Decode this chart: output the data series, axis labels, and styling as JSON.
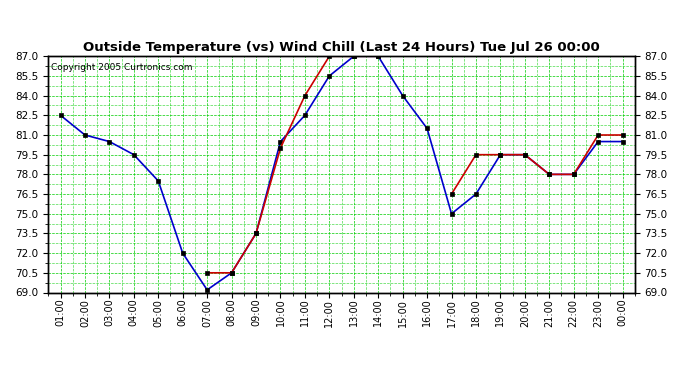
{
  "title": "Outside Temperature (vs) Wind Chill (Last 24 Hours) Tue Jul 26 00:00",
  "copyright": "Copyright 2005 Curtronics.com",
  "hours": [
    "01:00",
    "02:00",
    "03:00",
    "04:00",
    "05:00",
    "06:00",
    "07:00",
    "08:00",
    "09:00",
    "10:00",
    "11:00",
    "12:00",
    "13:00",
    "14:00",
    "15:00",
    "16:00",
    "17:00",
    "18:00",
    "19:00",
    "20:00",
    "21:00",
    "22:00",
    "23:00",
    "00:00"
  ],
  "outside_temp": [
    82.5,
    81.0,
    80.5,
    79.5,
    77.5,
    72.0,
    69.2,
    70.5,
    73.5,
    80.5,
    82.5,
    85.5,
    87.0,
    87.0,
    84.0,
    81.5,
    75.0,
    76.5,
    79.5,
    79.5,
    78.0,
    78.0,
    80.5,
    80.5
  ],
  "wind_chill": [
    null,
    null,
    null,
    null,
    null,
    null,
    70.5,
    70.5,
    73.5,
    80.0,
    84.0,
    87.0,
    87.0,
    87.0,
    null,
    null,
    76.5,
    79.5,
    79.5,
    79.5,
    78.0,
    78.0,
    81.0,
    81.0
  ],
  "outside_color": "#0000cc",
  "wind_chill_color": "#cc0000",
  "bg_color": "#ffffff",
  "plot_bg_color": "#ffffff",
  "grid_color_major": "#00cc00",
  "grid_color_minor": "#00cc00",
  "title_color": "#000000",
  "ylim": [
    69.0,
    87.0
  ],
  "yticks": [
    69.0,
    70.5,
    72.0,
    73.5,
    75.0,
    76.5,
    78.0,
    79.5,
    81.0,
    82.5,
    84.0,
    85.5,
    87.0
  ]
}
